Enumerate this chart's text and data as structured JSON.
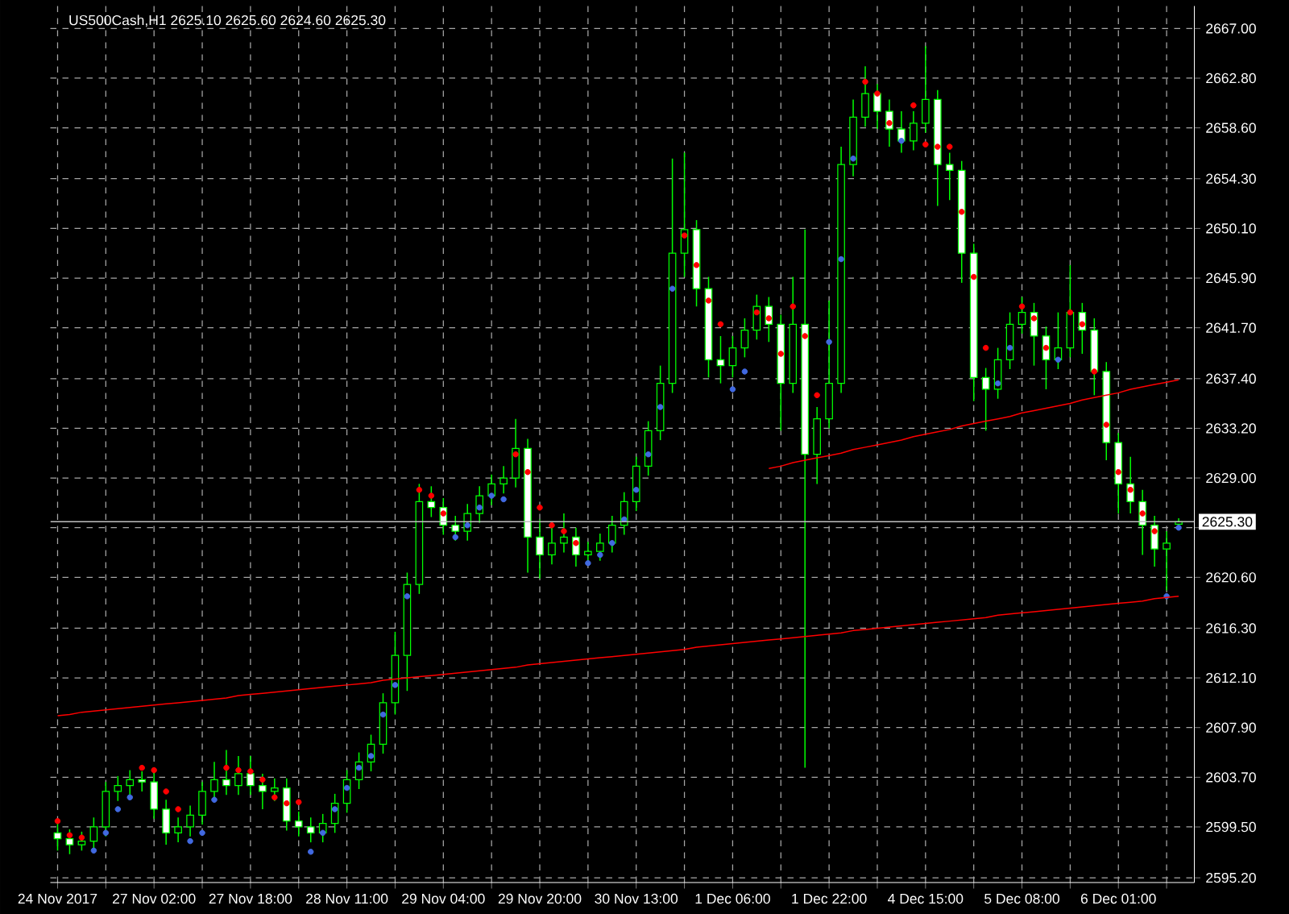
{
  "chart_data": {
    "type": "candlestick",
    "title": "US500Cash,H1 2625.10 2625.60 2624.60 2625.30",
    "color": "#00ff00",
    "grid": true,
    "categories": [
      "24 Nov 2017",
      null,
      null,
      null,
      null,
      null,
      null,
      null,
      "27 Nov 02:00",
      null,
      null,
      null,
      null,
      null,
      null,
      null,
      "27 Nov 18:00",
      null,
      null,
      null,
      null,
      null,
      null,
      null,
      "28 Nov 11:00",
      null,
      null,
      null,
      null,
      null,
      null,
      null,
      "29 Nov 04:00",
      null,
      null,
      null,
      null,
      null,
      null,
      null,
      "29 Nov 20:00",
      null,
      null,
      null,
      null,
      null,
      null,
      null,
      "30 Nov 13:00",
      null,
      null,
      null,
      null,
      null,
      null,
      null,
      "1 Dec 06:00",
      null,
      null,
      null,
      null,
      null,
      null,
      null,
      "1 Dec 22:00",
      null,
      null,
      null,
      null,
      null,
      null,
      null,
      "4 Dec 15:00",
      null,
      null,
      null,
      null,
      null,
      null,
      null,
      "5 Dec 08:00",
      null,
      null,
      null,
      null,
      null,
      null,
      null,
      "6 Dec 01:00",
      null,
      null,
      null,
      null,
      null
    ],
    "ohlc": [
      [
        2599.0,
        2599.8,
        2597.5,
        2598.5
      ],
      [
        2598.5,
        2599.3,
        2597.2,
        2598.0
      ],
      [
        2598.0,
        2599.1,
        2597.5,
        2598.3
      ],
      [
        2598.3,
        2600.3,
        2597.5,
        2599.5
      ],
      [
        2599.5,
        2603.3,
        2598.7,
        2602.5
      ],
      [
        2602.5,
        2603.8,
        2601.7,
        2603.0
      ],
      [
        2603.0,
        2604.3,
        2602.2,
        2603.5
      ],
      [
        2603.5,
        2604.2,
        2602.5,
        2603.3
      ],
      [
        2603.3,
        2604.1,
        2600.2,
        2601.0
      ],
      [
        2601.0,
        2601.8,
        2598.0,
        2599.0
      ],
      [
        2599.0,
        2600.3,
        2598.2,
        2599.5
      ],
      [
        2599.5,
        2601.3,
        2598.7,
        2600.5
      ],
      [
        2600.5,
        2603.3,
        2599.7,
        2602.5
      ],
      [
        2602.5,
        2605.0,
        2601.7,
        2603.5
      ],
      [
        2603.5,
        2606.0,
        2602.2,
        2603.0
      ],
      [
        2603.0,
        2605.5,
        2602.2,
        2604.0
      ],
      [
        2604.0,
        2605.5,
        2602.2,
        2603.0
      ],
      [
        2603.0,
        2604.0,
        2601.0,
        2602.5
      ],
      [
        2602.5,
        2603.6,
        2601.7,
        2602.8
      ],
      [
        2602.8,
        2603.6,
        2599.2,
        2600.0
      ],
      [
        2600.0,
        2600.8,
        2598.7,
        2599.5
      ],
      [
        2599.5,
        2600.3,
        2598.2,
        2599.0
      ],
      [
        2599.0,
        2600.6,
        2598.2,
        2599.8
      ],
      [
        2599.8,
        2602.3,
        2599.0,
        2601.5
      ],
      [
        2601.5,
        2604.3,
        2600.7,
        2603.5
      ],
      [
        2603.5,
        2605.8,
        2602.7,
        2605.0
      ],
      [
        2605.0,
        2607.3,
        2604.2,
        2606.5
      ],
      [
        2606.5,
        2610.8,
        2605.7,
        2610.0
      ],
      [
        2610.0,
        2616.0,
        2609.0,
        2614.0
      ],
      [
        2614.0,
        2621.0,
        2611.0,
        2620.0
      ],
      [
        2620.0,
        2628.5,
        2619.2,
        2627.0
      ],
      [
        2627.0,
        2628.3,
        2625.7,
        2626.5
      ],
      [
        2626.5,
        2627.3,
        2624.2,
        2625.0
      ],
      [
        2625.0,
        2625.8,
        2623.7,
        2624.5
      ],
      [
        2624.5,
        2626.8,
        2623.7,
        2626.0
      ],
      [
        2626.0,
        2628.3,
        2625.2,
        2627.5
      ],
      [
        2627.5,
        2629.3,
        2626.7,
        2628.5
      ],
      [
        2628.5,
        2630.0,
        2627.7,
        2629.0
      ],
      [
        2629.0,
        2634.0,
        2628.2,
        2631.5
      ],
      [
        2631.5,
        2632.3,
        2621.0,
        2624.0
      ],
      [
        2624.0,
        2625.5,
        2620.5,
        2622.5
      ],
      [
        2622.5,
        2625.0,
        2621.7,
        2623.5
      ],
      [
        2623.5,
        2626.0,
        2622.7,
        2624.0
      ],
      [
        2624.0,
        2624.8,
        2621.5,
        2622.5
      ],
      [
        2622.5,
        2623.6,
        2621.7,
        2622.8
      ],
      [
        2622.8,
        2624.3,
        2622.0,
        2623.5
      ],
      [
        2623.5,
        2625.8,
        2622.7,
        2625.0
      ],
      [
        2625.0,
        2627.8,
        2624.2,
        2627.0
      ],
      [
        2627.0,
        2630.8,
        2626.2,
        2630.0
      ],
      [
        2630.0,
        2633.8,
        2629.2,
        2633.0
      ],
      [
        2633.0,
        2638.5,
        2632.2,
        2637.0
      ],
      [
        2637.0,
        2656.0,
        2636.2,
        2648.0
      ],
      [
        2648.0,
        2656.5,
        2646.0,
        2650.0
      ],
      [
        2650.0,
        2650.8,
        2643.5,
        2645.0
      ],
      [
        2645.0,
        2646.0,
        2637.5,
        2639.0
      ],
      [
        2639.0,
        2641.0,
        2637.0,
        2638.5
      ],
      [
        2638.5,
        2641.0,
        2637.5,
        2640.0
      ],
      [
        2640.0,
        2642.5,
        2639.2,
        2641.5
      ],
      [
        2641.5,
        2644.5,
        2640.7,
        2643.5
      ],
      [
        2643.5,
        2644.3,
        2640.5,
        2642.0
      ],
      [
        2642.0,
        2642.8,
        2633.0,
        2637.0
      ],
      [
        2637.0,
        2646.0,
        2636.2,
        2642.0
      ],
      [
        2642.0,
        2650.0,
        2604.5,
        2631.0
      ],
      [
        2631.0,
        2635.0,
        2628.5,
        2634.0
      ],
      [
        2634.0,
        2644.0,
        2633.2,
        2637.0
      ],
      [
        2637.0,
        2657.0,
        2636.2,
        2655.5
      ],
      [
        2655.5,
        2661.0,
        2654.5,
        2659.5
      ],
      [
        2659.5,
        2663.8,
        2658.7,
        2661.5
      ],
      [
        2661.5,
        2662.3,
        2658.5,
        2660.0
      ],
      [
        2660.0,
        2661.0,
        2657.0,
        2658.5
      ],
      [
        2658.5,
        2660.0,
        2656.5,
        2657.5
      ],
      [
        2657.5,
        2660.0,
        2656.7,
        2659.0
      ],
      [
        2659.0,
        2665.5,
        2658.2,
        2661.0
      ],
      [
        2661.0,
        2661.8,
        2652.0,
        2655.5
      ],
      [
        2655.5,
        2656.5,
        2652.5,
        2655.0
      ],
      [
        2655.0,
        2655.8,
        2645.5,
        2648.0
      ],
      [
        2648.0,
        2648.8,
        2635.5,
        2637.5
      ],
      [
        2637.5,
        2638.3,
        2633.0,
        2636.5
      ],
      [
        2636.5,
        2640.0,
        2635.7,
        2639.0
      ],
      [
        2639.0,
        2643.0,
        2638.2,
        2642.0
      ],
      [
        2642.0,
        2644.3,
        2641.2,
        2643.0
      ],
      [
        2643.0,
        2643.8,
        2638.5,
        2641.0
      ],
      [
        2641.0,
        2641.8,
        2636.5,
        2639.0
      ],
      [
        2639.0,
        2643.0,
        2638.2,
        2640.0
      ],
      [
        2640.0,
        2647.0,
        2639.2,
        2643.0
      ],
      [
        2643.0,
        2643.8,
        2639.5,
        2641.5
      ],
      [
        2641.5,
        2642.5,
        2636.0,
        2638.0
      ],
      [
        2638.0,
        2638.8,
        2630.5,
        2632.0
      ],
      [
        2632.0,
        2632.8,
        2626.0,
        2628.5
      ],
      [
        2628.5,
        2630.8,
        2626.0,
        2627.0
      ],
      [
        2627.0,
        2628.0,
        2622.5,
        2625.0
      ],
      [
        2625.0,
        2625.8,
        2621.5,
        2623.0
      ],
      [
        2623.0,
        2624.5,
        2619.5,
        2623.5
      ],
      [
        2625.1,
        2625.6,
        2624.6,
        2625.3
      ]
    ],
    "series": [
      {
        "type": "scatter",
        "marker": "circle",
        "color": "#ff0000",
        "values": [
          2600.0,
          2598.8,
          2598.6,
          null,
          null,
          null,
          null,
          2604.5,
          2604.3,
          2602.5,
          2601.0,
          null,
          null,
          null,
          2604.5,
          2604.3,
          2604.2,
          2603.5,
          2602.0,
          2601.5,
          2601.6,
          null,
          null,
          null,
          null,
          null,
          null,
          null,
          null,
          null,
          2628.0,
          2627.5,
          2626.0,
          null,
          null,
          null,
          null,
          null,
          2631.0,
          2629.5,
          2626.5,
          2625.0,
          2624.5,
          2623.5,
          null,
          null,
          null,
          null,
          null,
          null,
          null,
          null,
          2649.5,
          2647.0,
          2644.0,
          2642.0,
          null,
          null,
          2643.0,
          2642.5,
          2639.5,
          2643.5,
          2641.0,
          2636.0,
          null,
          null,
          null,
          2662.5,
          2661.5,
          2659.0,
          null,
          2660.5,
          2657.2,
          2657.0,
          2657.0,
          2651.5,
          2646.0,
          2640.0,
          null,
          null,
          2643.5,
          2642.5,
          2640.0,
          null,
          2643.0,
          2642.0,
          2638.0,
          2633.5,
          2629.5,
          2628.0,
          2626.0,
          2624.5,
          null,
          null
        ]
      },
      {
        "type": "scatter",
        "marker": "circle",
        "color": "#4169e1",
        "values": [
          null,
          null,
          null,
          2597.5,
          2599.0,
          2601.0,
          2602.0,
          null,
          null,
          null,
          null,
          2598.3,
          2599.0,
          2601.8,
          null,
          null,
          null,
          null,
          null,
          null,
          null,
          2597.4,
          2599.0,
          2601.0,
          2602.8,
          2604.5,
          2605.5,
          2609.0,
          2611.5,
          2619.0,
          null,
          null,
          null,
          2624.0,
          2625.0,
          2626.5,
          2627.5,
          2627.2,
          null,
          null,
          null,
          null,
          null,
          null,
          2621.8,
          2622.5,
          2623.5,
          2625.5,
          2628.0,
          2631.0,
          2635.0,
          2645.0,
          null,
          null,
          null,
          null,
          2636.5,
          2638.0,
          null,
          null,
          null,
          null,
          null,
          null,
          2640.5,
          2647.5,
          2656.0,
          null,
          null,
          null,
          2657.5,
          null,
          null,
          null,
          null,
          null,
          null,
          null,
          2637.0,
          2640.0,
          null,
          null,
          null,
          2639.0,
          null,
          null,
          null,
          null,
          null,
          null,
          null,
          null,
          2619.0,
          2624.8
        ]
      },
      {
        "type": "line",
        "marker": "none",
        "color": "#ff0000",
        "values": [
          2608.9,
          2609.0,
          2609.2,
          2609.3,
          2609.4,
          2609.5,
          2609.6,
          2609.7,
          2609.8,
          2609.9,
          2610.0,
          2610.1,
          2610.2,
          2610.3,
          2610.4,
          2610.6,
          2610.7,
          2610.8,
          2610.9,
          2611.0,
          2611.1,
          2611.2,
          2611.3,
          2611.4,
          2611.5,
          2611.6,
          2611.7,
          2611.9,
          2612.0,
          2612.1,
          2612.2,
          2612.3,
          2612.4,
          2612.5,
          2612.6,
          2612.7,
          2612.8,
          2612.9,
          2613.0,
          2613.2,
          2613.3,
          2613.4,
          2613.5,
          2613.6,
          2613.7,
          2613.8,
          2613.9,
          2614.0,
          2614.1,
          2614.2,
          2614.3,
          2614.4,
          2614.5,
          2614.7,
          2614.8,
          2614.9,
          2615.0,
          2615.1,
          2615.2,
          2615.3,
          2615.4,
          2615.5,
          2615.6,
          2615.7,
          2615.8,
          2615.9,
          2616.1,
          2616.2,
          2616.3,
          2616.4,
          2616.5,
          2616.6,
          2616.7,
          2616.8,
          2616.9,
          2617.0,
          2617.1,
          2617.2,
          2617.4,
          2617.5,
          2617.6,
          2617.7,
          2617.8,
          2617.9,
          2618.0,
          2618.1,
          2618.2,
          2618.3,
          2618.4,
          2618.5,
          2618.6,
          2618.8,
          2618.9,
          2619.0
        ]
      },
      {
        "type": "line",
        "marker": "none",
        "color": "#ff0000",
        "values": [
          null,
          null,
          null,
          null,
          null,
          null,
          null,
          null,
          null,
          null,
          null,
          null,
          null,
          null,
          null,
          null,
          null,
          null,
          null,
          null,
          null,
          null,
          null,
          null,
          null,
          null,
          null,
          null,
          null,
          null,
          null,
          null,
          null,
          null,
          null,
          null,
          null,
          null,
          null,
          null,
          null,
          null,
          null,
          null,
          null,
          null,
          null,
          null,
          null,
          null,
          null,
          null,
          null,
          null,
          null,
          null,
          null,
          null,
          null,
          2629.8,
          2630.0,
          2630.3,
          2630.5,
          2630.7,
          2630.9,
          2631.1,
          2631.4,
          2631.6,
          2631.8,
          2632.0,
          2632.2,
          2632.5,
          2632.7,
          2632.9,
          2633.1,
          2633.4,
          2633.6,
          2633.8,
          2634.0,
          2634.2,
          2634.5,
          2634.7,
          2634.9,
          2635.1,
          2635.3,
          2635.6,
          2635.8,
          2636.0,
          2636.2,
          2636.5,
          2636.7,
          2636.9,
          2637.1,
          2637.3
        ]
      }
    ],
    "ref_lines": [
      {
        "axis": "y",
        "value": 2625.3,
        "label": "2625.30",
        "color": "#c0c0c0"
      }
    ],
    "ylim": [
      2594.8,
      2668.9
    ],
    "yticks": [
      {
        "value": 2595.2,
        "label": "2595.20"
      },
      {
        "value": 2599.5,
        "label": "2599.50"
      },
      {
        "value": 2603.7,
        "label": "2603.70"
      },
      {
        "value": 2607.9,
        "label": "2607.90"
      },
      {
        "value": 2612.1,
        "label": "2612.10"
      },
      {
        "value": 2616.3,
        "label": "2616.30"
      },
      {
        "value": 2620.6,
        "label": "2620.60"
      },
      {
        "value": 2624.8,
        "label": null
      },
      {
        "value": 2629.0,
        "label": "2629.00"
      },
      {
        "value": 2633.2,
        "label": "2633.20"
      },
      {
        "value": 2637.4,
        "label": "2637.40"
      },
      {
        "value": 2641.7,
        "label": "2641.70"
      },
      {
        "value": 2645.9,
        "label": "2645.90"
      },
      {
        "value": 2650.1,
        "label": "2650.10"
      },
      {
        "value": 2654.3,
        "label": "2654.30"
      },
      {
        "value": 2658.6,
        "label": "2658.60"
      },
      {
        "value": 2662.8,
        "label": "2662.80"
      },
      {
        "value": 2667.0,
        "label": "2667.00"
      }
    ]
  }
}
